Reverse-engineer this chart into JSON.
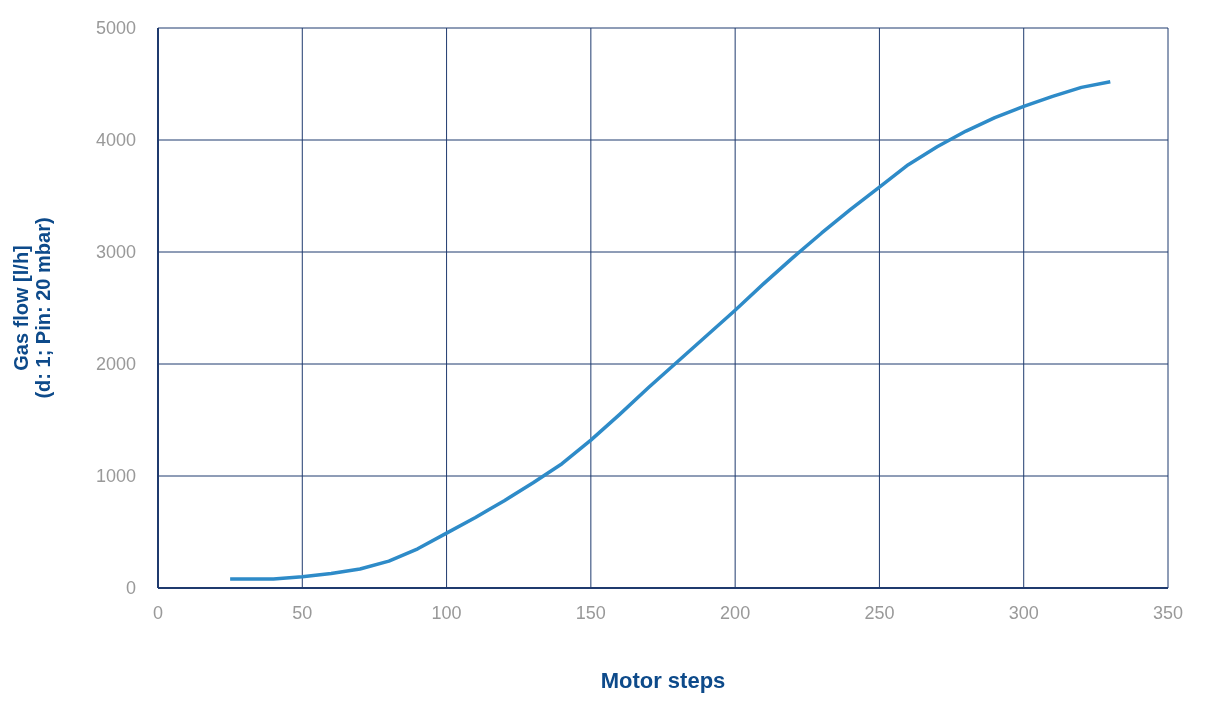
{
  "chart_data": {
    "type": "line",
    "xlabel": "Motor steps",
    "ylabel": "Gas flow [l/h]\n(d: 1; Pin: 20 mbar)",
    "xlim": [
      0,
      350
    ],
    "xticks": [
      0,
      50,
      100,
      150,
      200,
      250,
      300,
      350
    ],
    "ylim": [
      0,
      5000
    ],
    "yticks": [
      0,
      1000,
      2000,
      3000,
      4000,
      5000
    ],
    "grid": true,
    "marker": "none",
    "line_style": "solid",
    "x": [
      25,
      30,
      40,
      50,
      60,
      70,
      80,
      90,
      100,
      110,
      120,
      130,
      140,
      150,
      160,
      170,
      180,
      190,
      200,
      210,
      220,
      230,
      240,
      250,
      260,
      270,
      280,
      290,
      300,
      310,
      320,
      330
    ],
    "series": [
      {
        "color": "#2e8bc8",
        "values": [
          80,
          80,
          80,
          100,
          130,
          170,
          240,
          350,
          490,
          630,
          780,
          940,
          1110,
          1320,
          1550,
          1790,
          2020,
          2250,
          2480,
          2720,
          2950,
          3170,
          3380,
          3580,
          3780,
          3940,
          4080,
          4200,
          4300,
          4390,
          4470,
          4520
        ]
      }
    ]
  }
}
